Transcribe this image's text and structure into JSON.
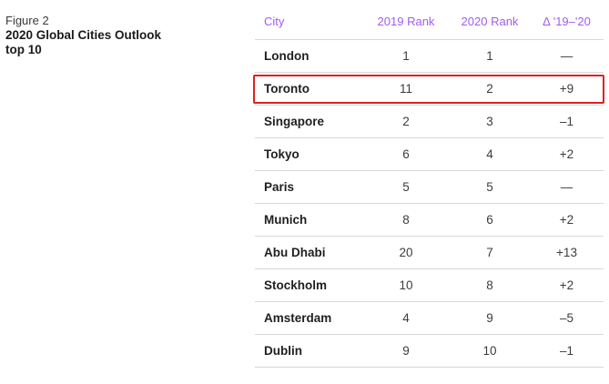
{
  "figure": {
    "label": "Figure 2",
    "title_line1": "2020 Global Cities Outlook",
    "title_line2": "top 10"
  },
  "table": {
    "headers": {
      "city": "City",
      "rank_2019": "2019 Rank",
      "rank_2020": "2020 Rank",
      "delta": "Δ '19–'20"
    },
    "rows": [
      {
        "city": "London",
        "rank_2019": "1",
        "rank_2020": "1",
        "delta": "—"
      },
      {
        "city": "Toronto",
        "rank_2019": "11",
        "rank_2020": "2",
        "delta": "+9"
      },
      {
        "city": "Singapore",
        "rank_2019": "2",
        "rank_2020": "3",
        "delta": "–1"
      },
      {
        "city": "Tokyo",
        "rank_2019": "6",
        "rank_2020": "4",
        "delta": "+2"
      },
      {
        "city": "Paris",
        "rank_2019": "5",
        "rank_2020": "5",
        "delta": "—"
      },
      {
        "city": "Munich",
        "rank_2019": "8",
        "rank_2020": "6",
        "delta": "+2"
      },
      {
        "city": "Abu Dhabi",
        "rank_2019": "20",
        "rank_2020": "7",
        "delta": "+13"
      },
      {
        "city": "Stockholm",
        "rank_2019": "10",
        "rank_2020": "8",
        "delta": "+2"
      },
      {
        "city": "Amsterdam",
        "rank_2019": "4",
        "rank_2020": "9",
        "delta": "–5"
      },
      {
        "city": "Dublin",
        "rank_2019": "9",
        "rank_2020": "10",
        "delta": "–1"
      }
    ]
  },
  "colors": {
    "header_text": "#a15cf0",
    "highlight_border": "#e0201f"
  }
}
